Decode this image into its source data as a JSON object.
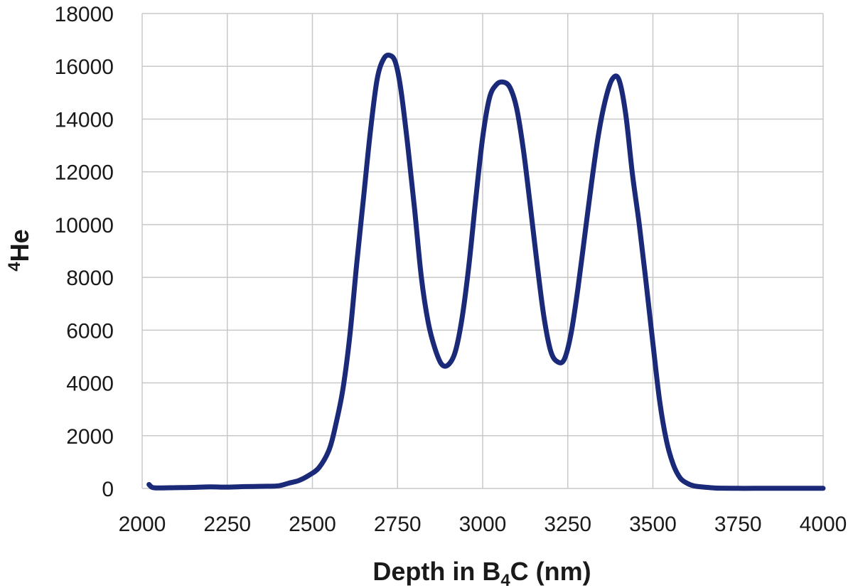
{
  "chart_data": {
    "type": "line",
    "title": "",
    "xlabel": {
      "prefix": "Depth in B",
      "subscript": "4",
      "suffix": "C (nm)"
    },
    "ylabel": {
      "superscript": "4",
      "main": "He"
    },
    "xlim": [
      2000,
      4000
    ],
    "ylim": [
      0,
      18000
    ],
    "x_ticks": [
      2000,
      2250,
      2500,
      2750,
      3000,
      3250,
      3500,
      3750,
      4000
    ],
    "y_ticks": [
      0,
      2000,
      4000,
      6000,
      8000,
      10000,
      12000,
      14000,
      16000,
      18000
    ],
    "grid": true,
    "legend": "none",
    "series": [
      {
        "color": "#1a2a78",
        "x": [
          2020,
          2030,
          2050,
          2100,
          2150,
          2200,
          2250,
          2300,
          2350,
          2400,
          2430,
          2460,
          2490,
          2520,
          2550,
          2570,
          2590,
          2610,
          2630,
          2650,
          2670,
          2690,
          2710,
          2730,
          2745,
          2760,
          2780,
          2800,
          2820,
          2840,
          2860,
          2880,
          2900,
          2920,
          2940,
          2960,
          2980,
          3000,
          3020,
          3040,
          3060,
          3080,
          3100,
          3120,
          3140,
          3160,
          3180,
          3200,
          3220,
          3240,
          3260,
          3280,
          3300,
          3320,
          3340,
          3360,
          3380,
          3400,
          3420,
          3440,
          3460,
          3480,
          3500,
          3520,
          3540,
          3560,
          3580,
          3600,
          3620,
          3650,
          3680,
          3700,
          3750,
          3800,
          3900,
          4000
        ],
        "y": [
          150,
          40,
          20,
          30,
          40,
          60,
          50,
          70,
          80,
          100,
          200,
          300,
          500,
          800,
          1500,
          2500,
          3800,
          5800,
          8500,
          11000,
          13500,
          15500,
          16300,
          16400,
          16100,
          15100,
          13000,
          10600,
          8000,
          6300,
          5300,
          4700,
          4700,
          5200,
          6500,
          8500,
          11000,
          13300,
          14800,
          15300,
          15400,
          15200,
          14400,
          12800,
          10700,
          8500,
          6500,
          5200,
          4800,
          4900,
          5900,
          7600,
          9600,
          11600,
          13400,
          14700,
          15500,
          15500,
          14200,
          11900,
          10000,
          7800,
          5500,
          3300,
          1800,
          900,
          400,
          200,
          100,
          50,
          20,
          10,
          5,
          5,
          5,
          5
        ]
      }
    ]
  }
}
